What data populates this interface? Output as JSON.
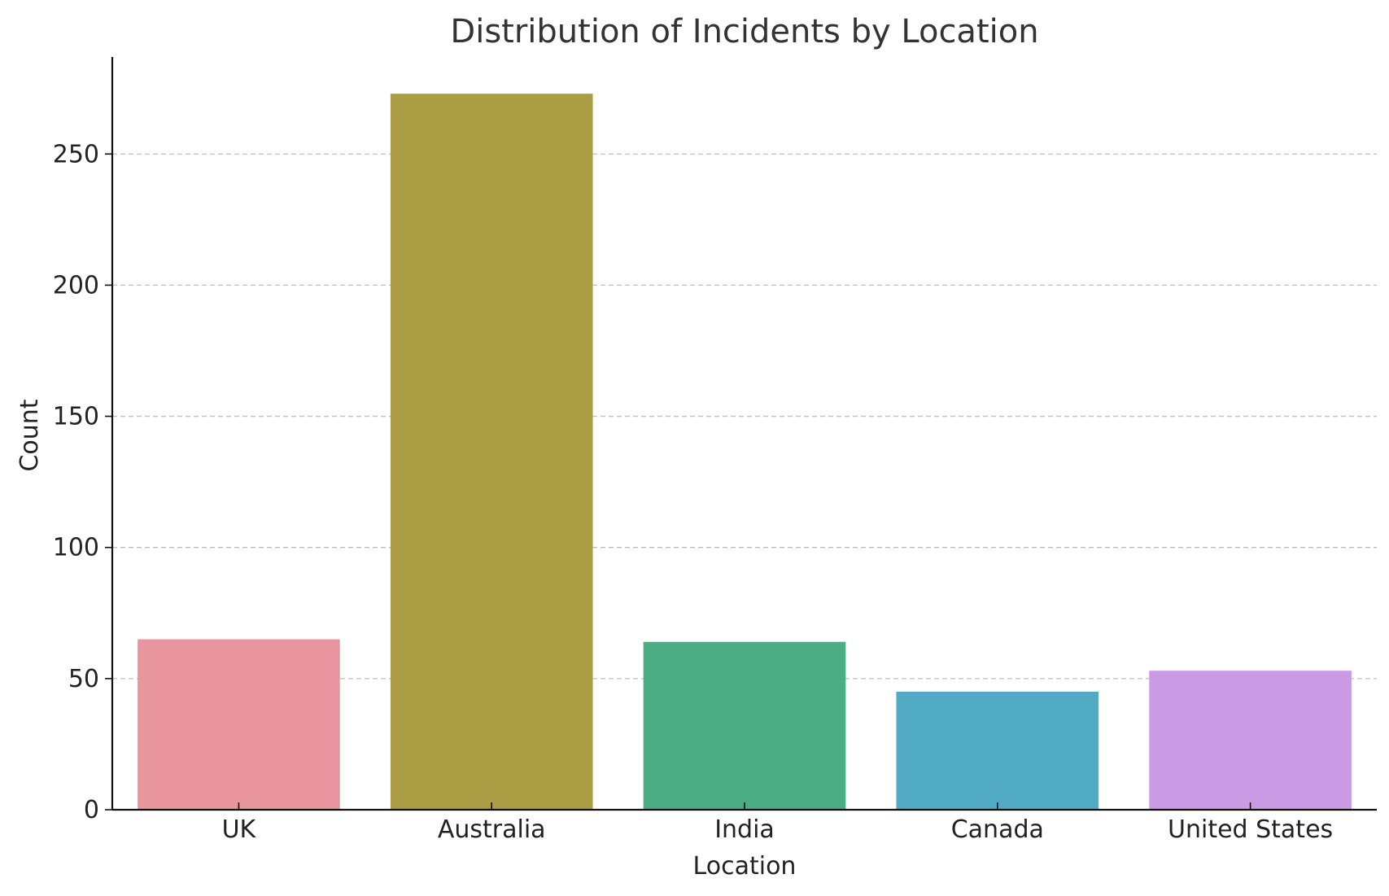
{
  "chart_data": {
    "type": "bar",
    "title": "Distribution of Incidents by Location",
    "xlabel": "Location",
    "ylabel": "Count",
    "categories": [
      "UK",
      "Australia",
      "India",
      "Canada",
      "United States"
    ],
    "values": [
      65,
      273,
      64,
      45,
      53
    ],
    "colors": [
      "#e8959f",
      "#aa9d44",
      "#4aad84",
      "#52abc4",
      "#cb9ae4"
    ],
    "ylim": [
      0,
      287
    ],
    "yticks": [
      0,
      50,
      100,
      150,
      200,
      250
    ],
    "grid": "horizontal dashed",
    "legend": "none"
  }
}
